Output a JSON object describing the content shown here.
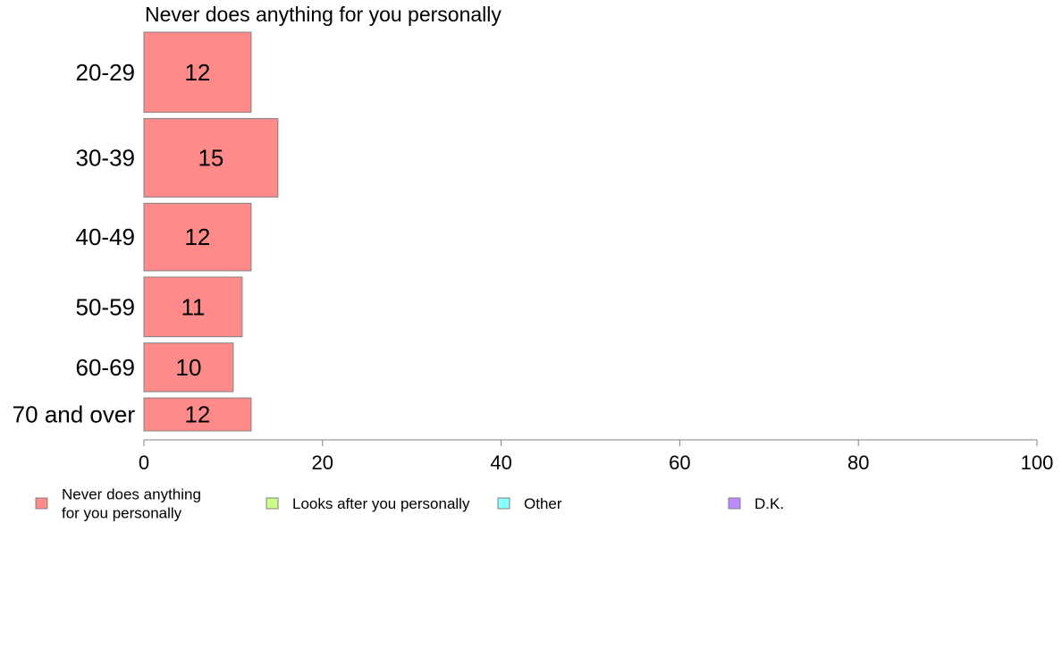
{
  "chart_data": {
    "type": "bar",
    "orientation": "horizontal",
    "title": "Never does anything for you personally",
    "categories": [
      "20-29",
      "30-39",
      "40-49",
      "50-59",
      "60-69",
      "70 and over"
    ],
    "series": [
      {
        "name": "Never does anything for you personally",
        "color": "#ff8a8a",
        "values": [
          12,
          15,
          12,
          11,
          10,
          12
        ],
        "labels": [
          "12",
          "15",
          "12",
          "11",
          "10",
          "12"
        ]
      }
    ],
    "bar_thickness_weights": [
      1.02,
      1.0,
      0.86,
      0.76,
      0.62,
      0.42
    ],
    "xlim": [
      0,
      100
    ],
    "xticks": [
      "0",
      "20",
      "40",
      "60",
      "80",
      "100"
    ],
    "xlabel": "",
    "ylabel": "",
    "grid": false,
    "legend": {
      "placement": "bottom",
      "entries": [
        {
          "label": "Never does anything for you personally",
          "lines": [
            "Never does anything",
            "for you personally"
          ],
          "color": "#ff8a8a"
        },
        {
          "label": "Looks after you personally",
          "lines": [
            "Looks after you personally"
          ],
          "color": "#ccff88"
        },
        {
          "label": "Other",
          "lines": [
            "Other"
          ],
          "color": "#88ffff"
        },
        {
          "label": "D.K.",
          "lines": [
            "D.K."
          ],
          "color": "#c08aff"
        }
      ]
    }
  }
}
